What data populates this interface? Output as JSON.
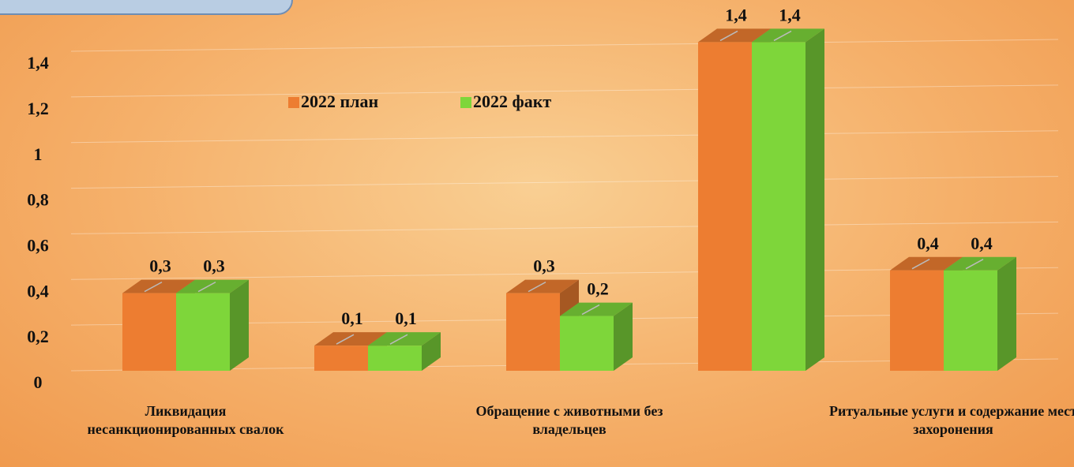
{
  "chart_data": {
    "type": "bar3d",
    "categories": [
      "Ликвидация несанкционированных свалок",
      null,
      "Обращение с животными без владельцев",
      null,
      "Ритуальные услуги и содержание мест захоронения"
    ],
    "series": [
      {
        "name": "2022 план",
        "color": "#ed7d31",
        "values": [
          0.34,
          0.11,
          0.34,
          1.44,
          0.44
        ],
        "value_labels": [
          "0,3",
          "0,1",
          "0,3",
          "1,4",
          "0,4"
        ]
      },
      {
        "name": "2022 факт",
        "color": "#7ed63a",
        "values": [
          0.34,
          0.11,
          0.24,
          1.44,
          0.44
        ],
        "value_labels": [
          "0,3",
          "0,1",
          "0,2",
          "1,4",
          "0,4"
        ]
      }
    ],
    "ylim": [
      0,
      1.4
    ],
    "yticks": [
      0,
      {
        "value": 0.2,
        "label": "0,2"
      },
      {
        "value": 0.4,
        "label": "0,4"
      },
      {
        "value": 0.6,
        "label": "0,6"
      },
      {
        "value": 0.8,
        "label": "0,8"
      },
      1,
      {
        "value": 1.2,
        "label": "1,2"
      },
      {
        "value": 1.4,
        "label": "1,4"
      }
    ],
    "grid": true
  }
}
